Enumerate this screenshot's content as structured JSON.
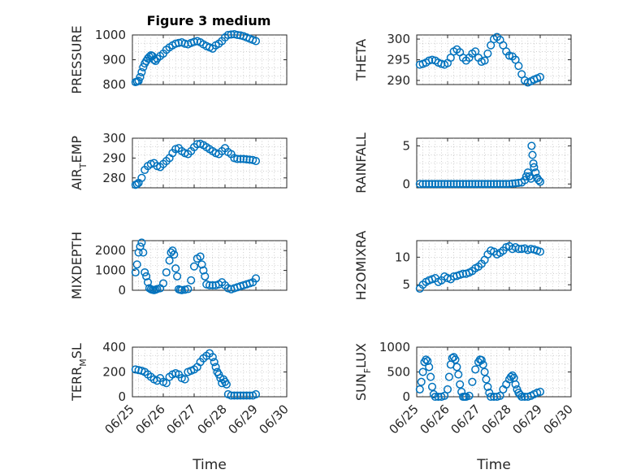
{
  "figure_title": "Figure 3 medium",
  "colors": {
    "series": "#0072BD",
    "axis": "#262626",
    "grid": "#b0b0b0"
  },
  "chart_data": [
    {
      "id": "pressure",
      "type": "scatter",
      "column": 0,
      "row": 0,
      "title": "Figure 3 medium",
      "ylabel": {
        "main": "PRESSURE"
      },
      "xlabel": "",
      "xlim": [
        0,
        5
      ],
      "ylim": [
        800,
        1000
      ],
      "yticks": [
        800,
        900,
        1000
      ],
      "ytick_labels": [
        "800",
        "900",
        "1000"
      ],
      "xticks": [
        0,
        1,
        2,
        3,
        4,
        5
      ],
      "xtick_labels": [],
      "grid": true,
      "marker": "o",
      "x": [
        0.1,
        0.15,
        0.2,
        0.25,
        0.3,
        0.35,
        0.4,
        0.45,
        0.5,
        0.55,
        0.6,
        0.65,
        0.7,
        0.75,
        0.8,
        0.9,
        1.0,
        1.1,
        1.2,
        1.3,
        1.4,
        1.5,
        1.6,
        1.7,
        1.8,
        1.9,
        2.0,
        2.1,
        2.2,
        2.3,
        2.4,
        2.5,
        2.6,
        2.7,
        2.8,
        2.9,
        3.0,
        3.1,
        3.2,
        3.3,
        3.4,
        3.5,
        3.6,
        3.7,
        3.8,
        3.9,
        4.0
      ],
      "y": [
        810,
        812,
        815,
        830,
        850,
        870,
        885,
        895,
        905,
        912,
        918,
        915,
        900,
        895,
        905,
        915,
        925,
        940,
        950,
        958,
        965,
        968,
        970,
        965,
        962,
        968,
        972,
        975,
        970,
        962,
        955,
        950,
        945,
        958,
        965,
        975,
        990,
        1000,
        1002,
        1003,
        1000,
        998,
        995,
        990,
        985,
        980,
        975
      ]
    },
    {
      "id": "theta",
      "type": "scatter",
      "column": 1,
      "row": 0,
      "ylabel": {
        "main": "THETA"
      },
      "xlabel": "",
      "xlim": [
        0,
        5
      ],
      "ylim": [
        289,
        301
      ],
      "yticks": [
        290,
        295,
        300
      ],
      "ytick_labels": [
        "290",
        "295",
        "300"
      ],
      "xticks": [
        0,
        1,
        2,
        3,
        4,
        5
      ],
      "xtick_labels": [],
      "grid": true,
      "marker": "o",
      "x": [
        0.1,
        0.2,
        0.3,
        0.4,
        0.5,
        0.6,
        0.7,
        0.8,
        0.9,
        1.0,
        1.1,
        1.2,
        1.3,
        1.4,
        1.5,
        1.6,
        1.7,
        1.8,
        1.9,
        2.0,
        2.1,
        2.2,
        2.3,
        2.4,
        2.5,
        2.6,
        2.7,
        2.8,
        2.9,
        3.0,
        3.1,
        3.2,
        3.3,
        3.4,
        3.5,
        3.6,
        3.7,
        3.8,
        3.9,
        4.0
      ],
      "y": [
        293.8,
        294.0,
        294.3,
        294.8,
        295.0,
        294.8,
        294.3,
        294.0,
        293.8,
        294.2,
        295.5,
        297.0,
        297.5,
        296.8,
        295.5,
        294.8,
        295.5,
        296.5,
        297.0,
        295.5,
        294.5,
        294.8,
        296.5,
        298.5,
        300.0,
        300.5,
        299.8,
        298.5,
        297.0,
        296.0,
        295.8,
        295.0,
        293.5,
        291.5,
        290.0,
        289.5,
        289.8,
        290.2,
        290.5,
        290.8
      ]
    },
    {
      "id": "air_temp",
      "type": "scatter",
      "column": 0,
      "row": 1,
      "ylabel": {
        "main": "AIR",
        "sub": "T",
        "tail": "EMP"
      },
      "xlabel": "",
      "xlim": [
        0,
        5
      ],
      "ylim": [
        275,
        300
      ],
      "yticks": [
        280,
        290,
        300
      ],
      "ytick_labels": [
        "280",
        "290",
        "300"
      ],
      "xticks": [
        0,
        1,
        2,
        3,
        4,
        5
      ],
      "xtick_labels": [],
      "grid": true,
      "marker": "o",
      "x": [
        0.1,
        0.15,
        0.2,
        0.3,
        0.4,
        0.5,
        0.6,
        0.7,
        0.8,
        0.9,
        1.0,
        1.1,
        1.2,
        1.3,
        1.4,
        1.5,
        1.6,
        1.7,
        1.8,
        1.9,
        2.0,
        2.1,
        2.2,
        2.3,
        2.4,
        2.5,
        2.6,
        2.7,
        2.8,
        2.9,
        3.0,
        3.1,
        3.2,
        3.3,
        3.4,
        3.5,
        3.6,
        3.7,
        3.8,
        3.9,
        4.0
      ],
      "y": [
        276.5,
        276.8,
        277.5,
        280,
        284,
        286,
        287,
        287.5,
        286,
        285.5,
        287,
        288.5,
        290,
        292.5,
        294.5,
        295,
        293.5,
        292.5,
        292,
        293.5,
        295.5,
        297,
        297.2,
        296.5,
        295.5,
        294.5,
        293.5,
        292.5,
        292,
        293.5,
        295,
        293,
        292,
        290,
        289.5,
        289.5,
        289.5,
        289.3,
        289.2,
        289,
        288.5
      ]
    },
    {
      "id": "rainfall",
      "type": "scatter",
      "column": 1,
      "row": 1,
      "ylabel": {
        "main": "RAINFALL"
      },
      "xlabel": "",
      "xlim": [
        0,
        5
      ],
      "ylim": [
        -0.5,
        6
      ],
      "yticks": [
        0,
        5
      ],
      "ytick_labels": [
        "0",
        "5"
      ],
      "xticks": [
        0,
        1,
        2,
        3,
        4,
        5
      ],
      "xtick_labels": [],
      "grid": true,
      "marker": "o",
      "x": [
        0.1,
        0.2,
        0.3,
        0.4,
        0.5,
        0.6,
        0.7,
        0.8,
        0.9,
        1.0,
        1.1,
        1.2,
        1.3,
        1.4,
        1.5,
        1.6,
        1.7,
        1.8,
        1.9,
        2.0,
        2.1,
        2.2,
        2.3,
        2.4,
        2.5,
        2.6,
        2.7,
        2.8,
        2.9,
        3.0,
        3.1,
        3.2,
        3.3,
        3.4,
        3.5,
        3.55,
        3.6,
        3.65,
        3.7,
        3.72,
        3.75,
        3.78,
        3.8,
        3.85,
        3.9,
        3.95,
        4.0
      ],
      "y": [
        0,
        0,
        0,
        0,
        0,
        0,
        0,
        0,
        0,
        0,
        0,
        0,
        0,
        0,
        0,
        0,
        0,
        0,
        0,
        0,
        0,
        0,
        0,
        0,
        0,
        0,
        0,
        0,
        0,
        0,
        0.05,
        0.1,
        0.15,
        0.2,
        0.5,
        1.0,
        1.5,
        1.0,
        0.7,
        5.0,
        3.8,
        2.7,
        2.2,
        1.5,
        0.8,
        0.5,
        0.3
      ]
    },
    {
      "id": "mixdepth",
      "type": "scatter",
      "column": 0,
      "row": 2,
      "ylabel": {
        "main": "MIXDEPTH"
      },
      "xlabel": "",
      "xlim": [
        0,
        5
      ],
      "ylim": [
        0,
        2500
      ],
      "yticks": [
        0,
        1000,
        2000
      ],
      "ytick_labels": [
        "0",
        "1000",
        "2000"
      ],
      "xticks": [
        0,
        1,
        2,
        3,
        4,
        5
      ],
      "xtick_labels": [],
      "grid": true,
      "marker": "o",
      "x": [
        0.1,
        0.15,
        0.2,
        0.25,
        0.3,
        0.35,
        0.4,
        0.45,
        0.5,
        0.55,
        0.6,
        0.65,
        0.7,
        0.75,
        0.8,
        0.9,
        1.0,
        1.1,
        1.2,
        1.25,
        1.3,
        1.35,
        1.4,
        1.45,
        1.5,
        1.55,
        1.6,
        1.7,
        1.8,
        1.9,
        2.0,
        2.1,
        2.2,
        2.25,
        2.3,
        2.35,
        2.4,
        2.5,
        2.6,
        2.7,
        2.8,
        2.9,
        3.0,
        3.1,
        3.2,
        3.3,
        3.4,
        3.5,
        3.6,
        3.7,
        3.8,
        3.9,
        4.0
      ],
      "y": [
        900,
        1300,
        1900,
        2200,
        2400,
        1900,
        900,
        700,
        400,
        100,
        50,
        20,
        10,
        30,
        60,
        100,
        350,
        900,
        1500,
        1900,
        2000,
        1800,
        1100,
        700,
        50,
        20,
        10,
        30,
        60,
        500,
        1200,
        1600,
        1700,
        1300,
        1000,
        700,
        300,
        250,
        250,
        250,
        300,
        400,
        250,
        100,
        50,
        100,
        150,
        200,
        250,
        300,
        350,
        400,
        600
      ]
    },
    {
      "id": "h2omixra",
      "type": "scatter",
      "column": 1,
      "row": 2,
      "ylabel": {
        "main": "H2OMIXRA"
      },
      "xlabel": "",
      "xlim": [
        0,
        5
      ],
      "ylim": [
        4,
        13
      ],
      "yticks": [
        5,
        10
      ],
      "ytick_labels": [
        "5",
        "10"
      ],
      "xticks": [
        0,
        1,
        2,
        3,
        4,
        5
      ],
      "xtick_labels": [],
      "grid": true,
      "marker": "o",
      "x": [
        0.1,
        0.2,
        0.3,
        0.4,
        0.5,
        0.6,
        0.7,
        0.8,
        0.9,
        1.0,
        1.1,
        1.2,
        1.3,
        1.4,
        1.5,
        1.6,
        1.7,
        1.8,
        1.9,
        2.0,
        2.1,
        2.2,
        2.3,
        2.4,
        2.5,
        2.6,
        2.7,
        2.8,
        2.9,
        3.0,
        3.1,
        3.2,
        3.3,
        3.4,
        3.5,
        3.6,
        3.7,
        3.8,
        3.9,
        4.0
      ],
      "y": [
        4.3,
        5.0,
        5.5,
        5.8,
        6.0,
        6.2,
        5.5,
        5.8,
        6.5,
        6.2,
        6.0,
        6.5,
        6.6,
        6.8,
        7.0,
        7.0,
        7.2,
        7.5,
        8.0,
        8.3,
        8.8,
        9.5,
        10.5,
        11.2,
        11.0,
        10.5,
        10.8,
        11.2,
        11.8,
        12.0,
        11.5,
        11.8,
        11.5,
        11.5,
        11.6,
        11.3,
        11.5,
        11.4,
        11.2,
        11.0
      ]
    },
    {
      "id": "terr_msl",
      "type": "scatter",
      "column": 0,
      "row": 3,
      "ylabel": {
        "main": "TERR",
        "sub": "M",
        "tail": "SL"
      },
      "xlabel": "Time",
      "xlim": [
        0,
        5
      ],
      "ylim": [
        0,
        400
      ],
      "yticks": [
        0,
        200,
        400
      ],
      "ytick_labels": [
        "0",
        "200",
        "400"
      ],
      "xticks": [
        0,
        1,
        2,
        3,
        4,
        5
      ],
      "xtick_labels": [
        "06/25",
        "06/26",
        "06/27",
        "06/28",
        "06/29",
        "06/30"
      ],
      "grid": true,
      "marker": "o",
      "x": [
        0.1,
        0.2,
        0.3,
        0.4,
        0.5,
        0.6,
        0.7,
        0.8,
        0.9,
        1.0,
        1.1,
        1.2,
        1.3,
        1.4,
        1.5,
        1.6,
        1.7,
        1.8,
        1.9,
        2.0,
        2.1,
        2.2,
        2.3,
        2.4,
        2.5,
        2.6,
        2.65,
        2.7,
        2.75,
        2.8,
        2.85,
        2.9,
        2.95,
        3.0,
        3.05,
        3.1,
        3.2,
        3.3,
        3.4,
        3.5,
        3.6,
        3.7,
        3.8,
        3.9,
        4.0
      ],
      "y": [
        220,
        215,
        210,
        200,
        180,
        160,
        140,
        130,
        150,
        120,
        110,
        160,
        180,
        190,
        180,
        150,
        140,
        200,
        210,
        220,
        240,
        280,
        310,
        330,
        350,
        320,
        280,
        240,
        200,
        180,
        150,
        110,
        140,
        120,
        100,
        20,
        10,
        10,
        10,
        10,
        10,
        10,
        10,
        10,
        20
      ]
    },
    {
      "id": "sun_flux",
      "type": "scatter",
      "column": 1,
      "row": 3,
      "ylabel": {
        "main": "SUN",
        "sub": "F",
        "tail": "LUX"
      },
      "xlabel": "Time",
      "xlim": [
        0,
        5
      ],
      "ylim": [
        0,
        1000
      ],
      "yticks": [
        0,
        500,
        1000
      ],
      "ytick_labels": [
        "0",
        "500",
        "1000"
      ],
      "xticks": [
        0,
        1,
        2,
        3,
        4,
        5
      ],
      "xtick_labels": [
        "06/25",
        "06/26",
        "06/27",
        "06/28",
        "06/29",
        "06/30"
      ],
      "grid": true,
      "marker": "o",
      "x": [
        0.1,
        0.15,
        0.2,
        0.25,
        0.3,
        0.35,
        0.4,
        0.45,
        0.5,
        0.55,
        0.6,
        0.7,
        0.8,
        0.9,
        1.0,
        1.05,
        1.1,
        1.15,
        1.2,
        1.25,
        1.3,
        1.35,
        1.4,
        1.45,
        1.5,
        1.55,
        1.6,
        1.7,
        1.8,
        1.9,
        2.0,
        2.05,
        2.1,
        2.15,
        2.2,
        2.25,
        2.3,
        2.35,
        2.4,
        2.5,
        2.6,
        2.7,
        2.8,
        2.9,
        3.0,
        3.05,
        3.1,
        3.15,
        3.2,
        3.25,
        3.3,
        3.35,
        3.4,
        3.5,
        3.6,
        3.7,
        3.8,
        3.9,
        4.0
      ],
      "y": [
        150,
        300,
        500,
        700,
        750,
        720,
        600,
        400,
        200,
        50,
        0,
        0,
        0,
        20,
        150,
        400,
        650,
        780,
        800,
        750,
        600,
        450,
        250,
        100,
        0,
        0,
        0,
        20,
        300,
        550,
        700,
        750,
        740,
        650,
        500,
        350,
        200,
        80,
        0,
        0,
        0,
        20,
        150,
        250,
        350,
        400,
        430,
        380,
        250,
        150,
        80,
        40,
        0,
        0,
        0,
        20,
        50,
        80,
        100
      ]
    }
  ]
}
